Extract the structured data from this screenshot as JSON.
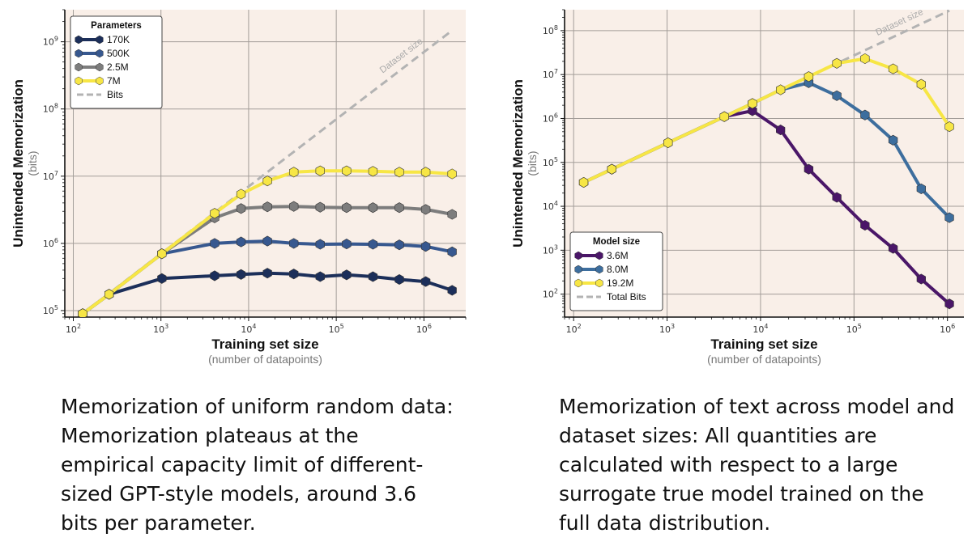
{
  "chart_data": [
    {
      "type": "line",
      "xscale": "log",
      "yscale": "log",
      "xlabel": "Training set size",
      "xlabel_sub": "(number of datapoints)",
      "ylabel": "Unintended Memorization",
      "ylabel_sub": "(bits)",
      "xlim": [
        80,
        3000000
      ],
      "ylim": [
        80000,
        3000000000
      ],
      "x_ticks": [
        100,
        1000,
        10000,
        100000,
        1000000
      ],
      "y_ticks": [
        100000,
        1000000,
        10000000,
        100000000,
        1000000000
      ],
      "grid": true,
      "legend": {
        "title": "Parameters",
        "position": "top-left"
      },
      "series": [
        {
          "name": "170K",
          "color": "#1c2f5a",
          "x": [
            128,
            256,
            1024,
            4096,
            8192,
            16384,
            32768,
            65536,
            131072,
            262144,
            524288,
            1048576,
            2097152
          ],
          "y": [
            90000,
            175000,
            300000,
            330000,
            345000,
            360000,
            350000,
            320000,
            340000,
            320000,
            290000,
            270000,
            200000
          ]
        },
        {
          "name": "500K",
          "color": "#37588f",
          "x": [
            128,
            256,
            1024,
            4096,
            8192,
            16384,
            32768,
            65536,
            131072,
            262144,
            524288,
            1048576,
            2097152
          ],
          "y": [
            90000,
            175000,
            700000,
            1000000,
            1050000,
            1080000,
            1000000,
            970000,
            980000,
            970000,
            950000,
            900000,
            750000
          ]
        },
        {
          "name": "2.5M",
          "color": "#7d7d7d",
          "x": [
            128,
            256,
            1024,
            4096,
            8192,
            16384,
            32768,
            65536,
            131072,
            262144,
            524288,
            1048576,
            2097152
          ],
          "y": [
            90000,
            175000,
            700000,
            2400000,
            3300000,
            3500000,
            3550000,
            3450000,
            3400000,
            3400000,
            3400000,
            3200000,
            2700000
          ]
        },
        {
          "name": "7M",
          "color": "#f7e645",
          "x": [
            128,
            256,
            1024,
            4096,
            8192,
            16384,
            32768,
            65536,
            131072,
            262144,
            524288,
            1048576,
            2097152
          ],
          "y": [
            90000,
            175000,
            700000,
            2800000,
            5400000,
            8500000,
            11500000,
            12000000,
            12000000,
            11800000,
            11500000,
            11500000,
            10800000
          ]
        },
        {
          "name": "Bits",
          "color": "#b3b3b3",
          "dashed": true,
          "x": [
            128,
            2097152
          ],
          "y": [
            90000,
            1474560000
          ]
        }
      ],
      "annotation": "Dataset size"
    },
    {
      "type": "line",
      "xscale": "log",
      "yscale": "log",
      "xlabel": "Training set size",
      "xlabel_sub": "(number of datapoints)",
      "ylabel": "Unintended Memorization",
      "ylabel_sub": "(bits)",
      "xlim": [
        80,
        1500000
      ],
      "ylim": [
        30,
        300000000
      ],
      "x_ticks": [
        100,
        1000,
        10000,
        100000,
        1000000
      ],
      "y_ticks": [
        100,
        1000,
        10000,
        100000,
        1000000,
        10000000,
        100000000
      ],
      "grid": true,
      "legend": {
        "title": "Model size",
        "position": "bottom-left"
      },
      "series": [
        {
          "name": "3.6M",
          "color": "#4a1668",
          "x": [
            128,
            256,
            1024,
            4096,
            8192,
            16384,
            32768,
            65536,
            131072,
            262144,
            524288,
            1048576
          ],
          "y": [
            35000,
            70000,
            280000,
            1100000,
            1500000,
            550000,
            70000,
            16000,
            3700,
            1100,
            220,
            60
          ]
        },
        {
          "name": "8.0M",
          "color": "#3d6e9e",
          "x": [
            128,
            256,
            1024,
            4096,
            8192,
            16384,
            32768,
            65536,
            131072,
            262144,
            524288,
            1048576
          ],
          "y": [
            35000,
            70000,
            280000,
            1100000,
            2200000,
            4500000,
            6500000,
            3300000,
            1200000,
            320000,
            25000,
            5500
          ]
        },
        {
          "name": "19.2M",
          "color": "#f7e645",
          "x": [
            128,
            256,
            1024,
            4096,
            8192,
            16384,
            32768,
            65536,
            131072,
            262144,
            524288,
            1048576
          ],
          "y": [
            35000,
            70000,
            280000,
            1100000,
            2200000,
            4500000,
            9000000,
            18000000,
            23000000,
            13500000,
            6000000,
            650000
          ]
        },
        {
          "name": "Total Bits",
          "color": "#b3b3b3",
          "dashed": true,
          "x": [
            128,
            1048576
          ],
          "y": [
            35000,
            286000000
          ]
        }
      ],
      "annotation": "Dataset size"
    }
  ],
  "captions": [
    "Memorization of uniform random data: Memorization plateaus at the empirical capacity limit of different-sized GPT-style models, around 3.6 bits per parameter.",
    "Memorization of text across model and dataset sizes: All quantities are calculated with respect to a large surrogate true model trained on the full data distribution."
  ]
}
